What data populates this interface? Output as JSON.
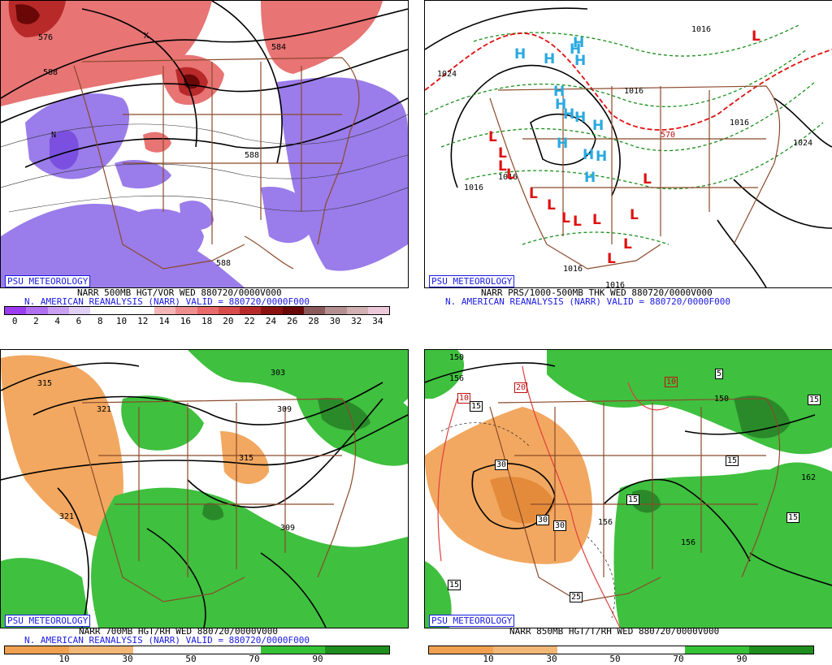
{
  "badge": "PSU METEOROLOGY",
  "panels": {
    "tl": {
      "caption1": "NARR 500MB HGT/VOR WED 880720/0000V000",
      "caption2": "N. AMERICAN REANALYSIS (NARR) VALID = 880720/0000F000",
      "labels": [
        "576",
        "588",
        "584",
        "588",
        "588",
        "N",
        "X"
      ]
    },
    "tr": {
      "caption1": "NARR PRS/1000-500MB THK WED 880720/0000V000",
      "caption2": "N. AMERICAN REANALYSIS (NARR) VALID = 880720/0000F000",
      "labels": [
        "1024",
        "1016",
        "1016",
        "1016",
        "1024",
        "1016",
        "1016",
        "1016",
        "1016",
        "570",
        "H",
        "L"
      ]
    },
    "bl": {
      "caption1": "NARR 700MB HGT/RH WED 880720/0000V000",
      "caption2": "N. AMERICAN REANALYSIS (NARR) VALID = 880720/0000F000",
      "labels": [
        "315",
        "321",
        "309",
        "303",
        "315",
        "321",
        "309"
      ]
    },
    "br": {
      "caption1": "NARR 850MB HGT/T/RH WED 880720/0000V000",
      "labels": [
        "150",
        "156",
        "150",
        "156",
        "156",
        "162",
        "10",
        "20",
        "30",
        "30",
        "15",
        "15",
        "5",
        "15",
        "25",
        "15",
        "15",
        "15",
        "10",
        "30"
      ]
    }
  },
  "colorbars": {
    "vor": {
      "ticks": [
        "0",
        "2",
        "4",
        "6",
        "8",
        "10",
        "12",
        "14",
        "16",
        "18",
        "20",
        "22",
        "24",
        "26",
        "28",
        "30",
        "32",
        "34"
      ],
      "colors": [
        "#9a3cf0",
        "#b070f0",
        "#c9a0f2",
        "#e2d0f7",
        "#ffffff",
        "#ffffff",
        "#ffffff",
        "#f4b6b6",
        "#ef8e8e",
        "#e86a6a",
        "#d94c4c",
        "#b82a2a",
        "#8b1010",
        "#6a0808",
        "#8b5a5a",
        "#b49090",
        "#d0b0b0",
        "#ecc8d8"
      ]
    },
    "rh700": {
      "ticks": [
        "10",
        "30",
        "50",
        "70",
        "90"
      ]
    },
    "rh850": {
      "ticks": [
        "10",
        "30",
        "50",
        "70",
        "90"
      ]
    },
    "rh_colors": [
      "#f0a050",
      "#f2b676",
      "#ffffff",
      "#ffffff",
      "#36c236",
      "#1e8f1e"
    ]
  }
}
